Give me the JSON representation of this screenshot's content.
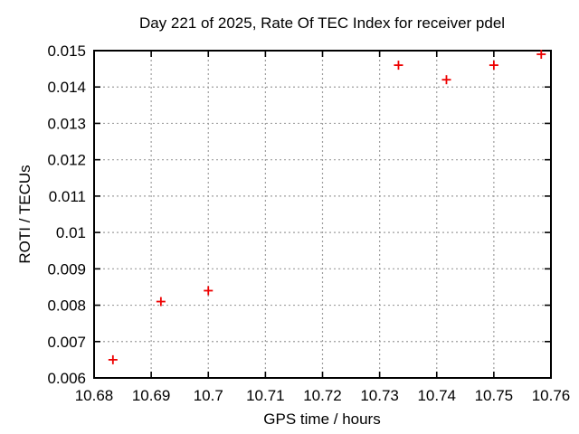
{
  "page": {
    "background": "#ffffff"
  },
  "chart_data": {
    "type": "scatter",
    "title": "Day 221 of 2025, Rate Of TEC Index for receiver pdel",
    "xlabel": "GPS time / hours",
    "ylabel": "ROTI / TECUs",
    "xlim": [
      10.68,
      10.76
    ],
    "ylim": [
      0.006,
      0.015
    ],
    "x_ticks": [
      {
        "v": 10.68,
        "label": "10.68"
      },
      {
        "v": 10.69,
        "label": "10.69"
      },
      {
        "v": 10.7,
        "label": "10.7"
      },
      {
        "v": 10.71,
        "label": "10.71"
      },
      {
        "v": 10.72,
        "label": "10.72"
      },
      {
        "v": 10.73,
        "label": "10.73"
      },
      {
        "v": 10.74,
        "label": "10.74"
      },
      {
        "v": 10.75,
        "label": "10.75"
      },
      {
        "v": 10.76,
        "label": "10.76"
      }
    ],
    "y_ticks": [
      {
        "v": 0.006,
        "label": "0.006"
      },
      {
        "v": 0.007,
        "label": "0.007"
      },
      {
        "v": 0.008,
        "label": "0.008"
      },
      {
        "v": 0.009,
        "label": "0.009"
      },
      {
        "v": 0.01,
        "label": "0.009999"
      },
      {
        "v": 0.011,
        "label": "0.011"
      },
      {
        "v": 0.012,
        "label": "0.012"
      },
      {
        "v": 0.013,
        "label": "0.013"
      },
      {
        "v": 0.014,
        "label": "0.014"
      },
      {
        "v": 0.015,
        "label": "0.015"
      }
    ],
    "grid": true,
    "legend": false,
    "series": [
      {
        "name": "ROTI",
        "marker": "plus",
        "color": "#ee0000",
        "points": [
          [
            10.6833,
            0.0065
          ],
          [
            10.6917,
            0.0081
          ],
          [
            10.7,
            0.0084
          ],
          [
            10.7333,
            0.0146
          ],
          [
            10.7417,
            0.0142
          ],
          [
            10.75,
            0.0146
          ],
          [
            10.7583,
            0.0149
          ]
        ]
      }
    ],
    "colors": {
      "marker": "#ee0000",
      "grid": "#9e9e9e",
      "axis": "#000000",
      "text": "#000000"
    }
  }
}
